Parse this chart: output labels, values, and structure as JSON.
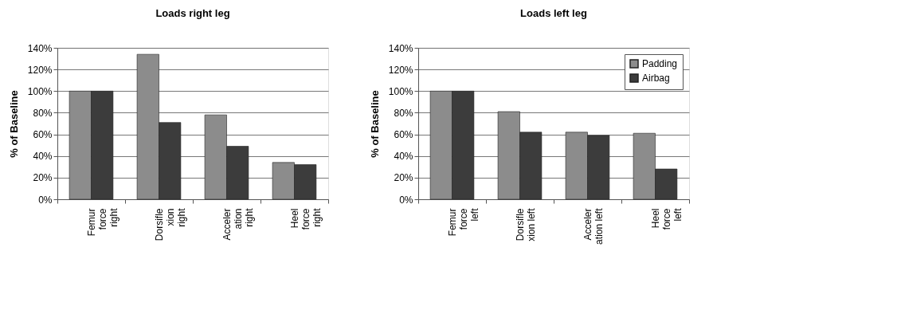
{
  "chart_data": [
    {
      "type": "bar",
      "title": "Loads right leg",
      "ylabel": "% of Baseline",
      "categories": [
        "Femur\nforce\nright",
        "Dorsifle\nxion\nright",
        "Acceler\nation\nright",
        "Heel\nforce\nright"
      ],
      "series": [
        {
          "color": "#8c8c8c",
          "values": [
            100,
            134,
            78,
            34
          ]
        },
        {
          "color": "#3c3c3c",
          "values": [
            100,
            71,
            49,
            32
          ]
        }
      ],
      "ylim": [
        0,
        140
      ],
      "yticks": [
        {
          "value": 0,
          "label": "0%"
        },
        {
          "value": 20,
          "label": "20%"
        },
        {
          "value": 40,
          "label": "40%"
        },
        {
          "value": 60,
          "label": "60%"
        },
        {
          "value": 80,
          "label": "80%"
        },
        {
          "value": 100,
          "label": "100%"
        },
        {
          "value": 120,
          "label": "120%"
        },
        {
          "value": 140,
          "label": "140%"
        }
      ],
      "grid": "y",
      "legend": false
    },
    {
      "type": "bar",
      "title": "Loads left leg",
      "ylabel": "% of Baseline",
      "categories": [
        "Femur\nforce\nleft",
        "Dorsifle\nxion left",
        "Acceler\nation left",
        "Heel\nforce\nleft"
      ],
      "series": [
        {
          "name": "Padding",
          "color": "#8c8c8c",
          "values": [
            100,
            81,
            62,
            61
          ]
        },
        {
          "name": "Airbag",
          "color": "#3c3c3c",
          "values": [
            100,
            62,
            59,
            28
          ]
        }
      ],
      "ylim": [
        0,
        140
      ],
      "yticks": [
        {
          "value": 0,
          "label": "0%"
        },
        {
          "value": 20,
          "label": "20%"
        },
        {
          "value": 40,
          "label": "40%"
        },
        {
          "value": 60,
          "label": "60%"
        },
        {
          "value": 80,
          "label": "80%"
        },
        {
          "value": 100,
          "label": "100%"
        },
        {
          "value": 120,
          "label": "120%"
        },
        {
          "value": 140,
          "label": "140%"
        }
      ],
      "grid": "y",
      "legend": "top right"
    }
  ]
}
